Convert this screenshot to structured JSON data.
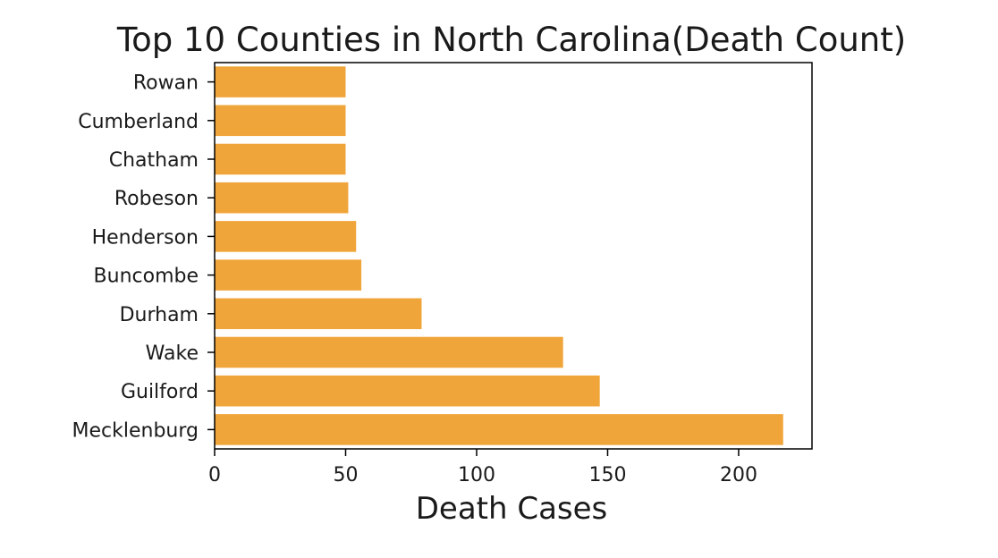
{
  "chart_data": {
    "type": "bar",
    "orientation": "horizontal",
    "title": "Top 10 Counties in North Carolina(Death Count)",
    "xlabel": "Death Cases",
    "ylabel": "",
    "categories": [
      "Mecklenburg",
      "Guilford",
      "Wake",
      "Durham",
      "Buncombe",
      "Henderson",
      "Robeson",
      "Chatham",
      "Cumberland",
      "Rowan"
    ],
    "values": [
      217,
      147,
      133,
      79,
      56,
      54,
      51,
      50,
      50,
      50
    ],
    "xlim": [
      0,
      228
    ],
    "xticks": [
      0,
      50,
      100,
      150,
      200
    ],
    "bar_color": "#f0a53b",
    "grid": false,
    "legend": "none"
  }
}
